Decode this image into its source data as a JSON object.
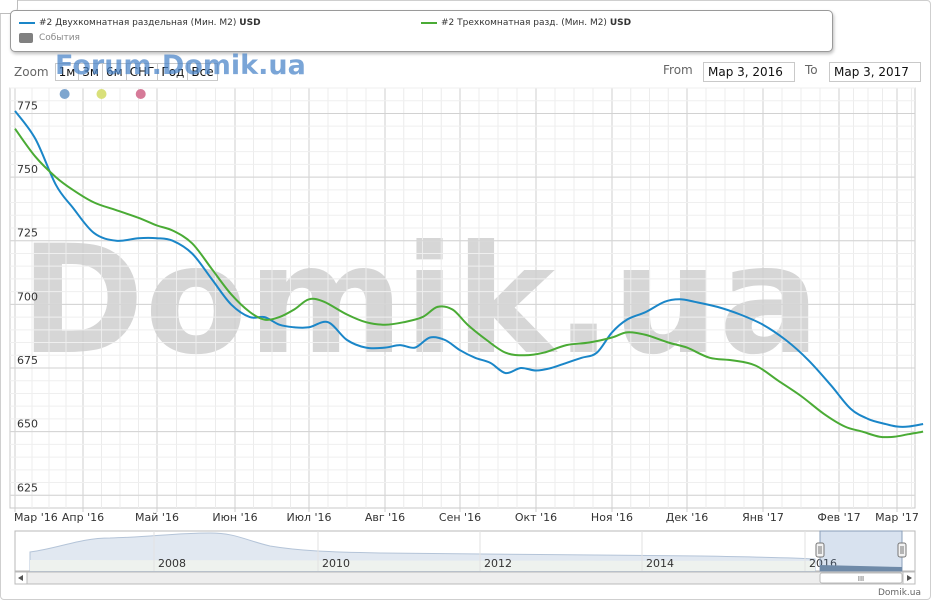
{
  "legend": {
    "series1_label": "#2 Двухкомнатная раздельная (Мин. M2)",
    "series1_unit": "USD",
    "series2_label": "#2 Трехкомнатная разд. (Мин. M2)",
    "series2_unit": "USD",
    "events_label": "События"
  },
  "zoom": {
    "label": "Zoom",
    "buttons": [
      "1м",
      "3м",
      "6м",
      "СНГ",
      "Год",
      "Все"
    ]
  },
  "watermark_top": "Forum.Domik.ua",
  "watermark_bg": "Domik.ua",
  "range": {
    "from_label": "From",
    "from_value": "Map 3, 2016",
    "to_label": "To",
    "to_value": "Map 3, 2017"
  },
  "event_markers": [
    {
      "month": 0.73,
      "color": "#7ea6cf"
    },
    {
      "month": 1.25,
      "color": "#d9e07a"
    },
    {
      "month": 1.78,
      "color": "#d67a98"
    }
  ],
  "chart_data": {
    "type": "line",
    "x_labels": [
      "Мар '16",
      "Апр '16",
      "Май '16",
      "Июн '16",
      "Июл '16",
      "Авг '16",
      "Сен '16",
      "Окт '16",
      "Ноя '16",
      "Дек '16",
      "Янв '17",
      "Фев '17",
      "Мар '17"
    ],
    "ylim": [
      620,
      785
    ],
    "yticks": [
      625,
      650,
      675,
      700,
      725,
      750,
      775
    ],
    "grid": true,
    "series": [
      {
        "name": "#2 Двухкомнатная раздельная (Мин. M2)",
        "color": "#1a86c8",
        "x": [
          0,
          0.3,
          0.6,
          0.85,
          1.15,
          1.45,
          1.75,
          2.0,
          2.2,
          2.45,
          2.7,
          2.95,
          3.2,
          3.4,
          3.6,
          3.8,
          4.0,
          4.25,
          4.5,
          4.75,
          5.0,
          5.2,
          5.4,
          5.6,
          5.8,
          6.0,
          6.2,
          6.4,
          6.6,
          6.8,
          7.0,
          7.2,
          7.4,
          7.6,
          7.8,
          8.0,
          8.2,
          8.45,
          8.7,
          8.9,
          9.1,
          9.4,
          9.7,
          10.0,
          10.3,
          10.6,
          10.9,
          11.2,
          11.5,
          11.8,
          12.0,
          12.2,
          12.45
        ],
        "y": [
          776,
          765,
          747,
          738,
          728,
          725,
          726,
          726,
          725,
          720,
          710,
          700,
          695,
          695,
          692,
          691,
          691,
          693,
          686,
          683,
          683,
          684,
          683,
          687,
          686,
          682,
          679,
          677,
          673,
          675,
          674,
          675,
          677,
          679,
          681,
          689,
          694,
          697,
          701,
          702,
          701,
          699,
          696,
          692,
          686,
          678,
          668,
          659,
          655,
          653,
          652,
          652,
          653
        ]
      },
      {
        "name": "#2 Трехкомнатная разд. (Мин. M2)",
        "color": "#4aab35",
        "x": [
          0,
          0.3,
          0.6,
          0.85,
          1.15,
          1.45,
          1.75,
          2.0,
          2.2,
          2.45,
          2.7,
          2.95,
          3.2,
          3.4,
          3.6,
          3.8,
          4.0,
          4.2,
          4.5,
          4.75,
          5.0,
          5.25,
          5.5,
          5.7,
          5.9,
          6.1,
          6.35,
          6.6,
          6.85,
          7.1,
          7.4,
          7.7,
          8.0,
          8.2,
          8.45,
          8.75,
          9.0,
          9.3,
          9.6,
          9.9,
          10.2,
          10.5,
          10.8,
          11.1,
          11.4,
          11.7,
          11.95,
          12.2,
          12.45
        ],
        "y": [
          769,
          758,
          750,
          745,
          740,
          737,
          734,
          731,
          729,
          724,
          714,
          704,
          697,
          694,
          695,
          698,
          702,
          701,
          696,
          693,
          692,
          693,
          695,
          699,
          698,
          692,
          686,
          681,
          680,
          681,
          684,
          685,
          687,
          689,
          688,
          685,
          683,
          679,
          678,
          676,
          670,
          664,
          657,
          652,
          650,
          648,
          648,
          649,
          650
        ]
      }
    ]
  },
  "navigator": {
    "year_labels": [
      "2008",
      "2010",
      "2012",
      "2014",
      "2016"
    ],
    "scroll_grip": "III"
  },
  "footer": {
    "credit": "Domik.ua"
  }
}
